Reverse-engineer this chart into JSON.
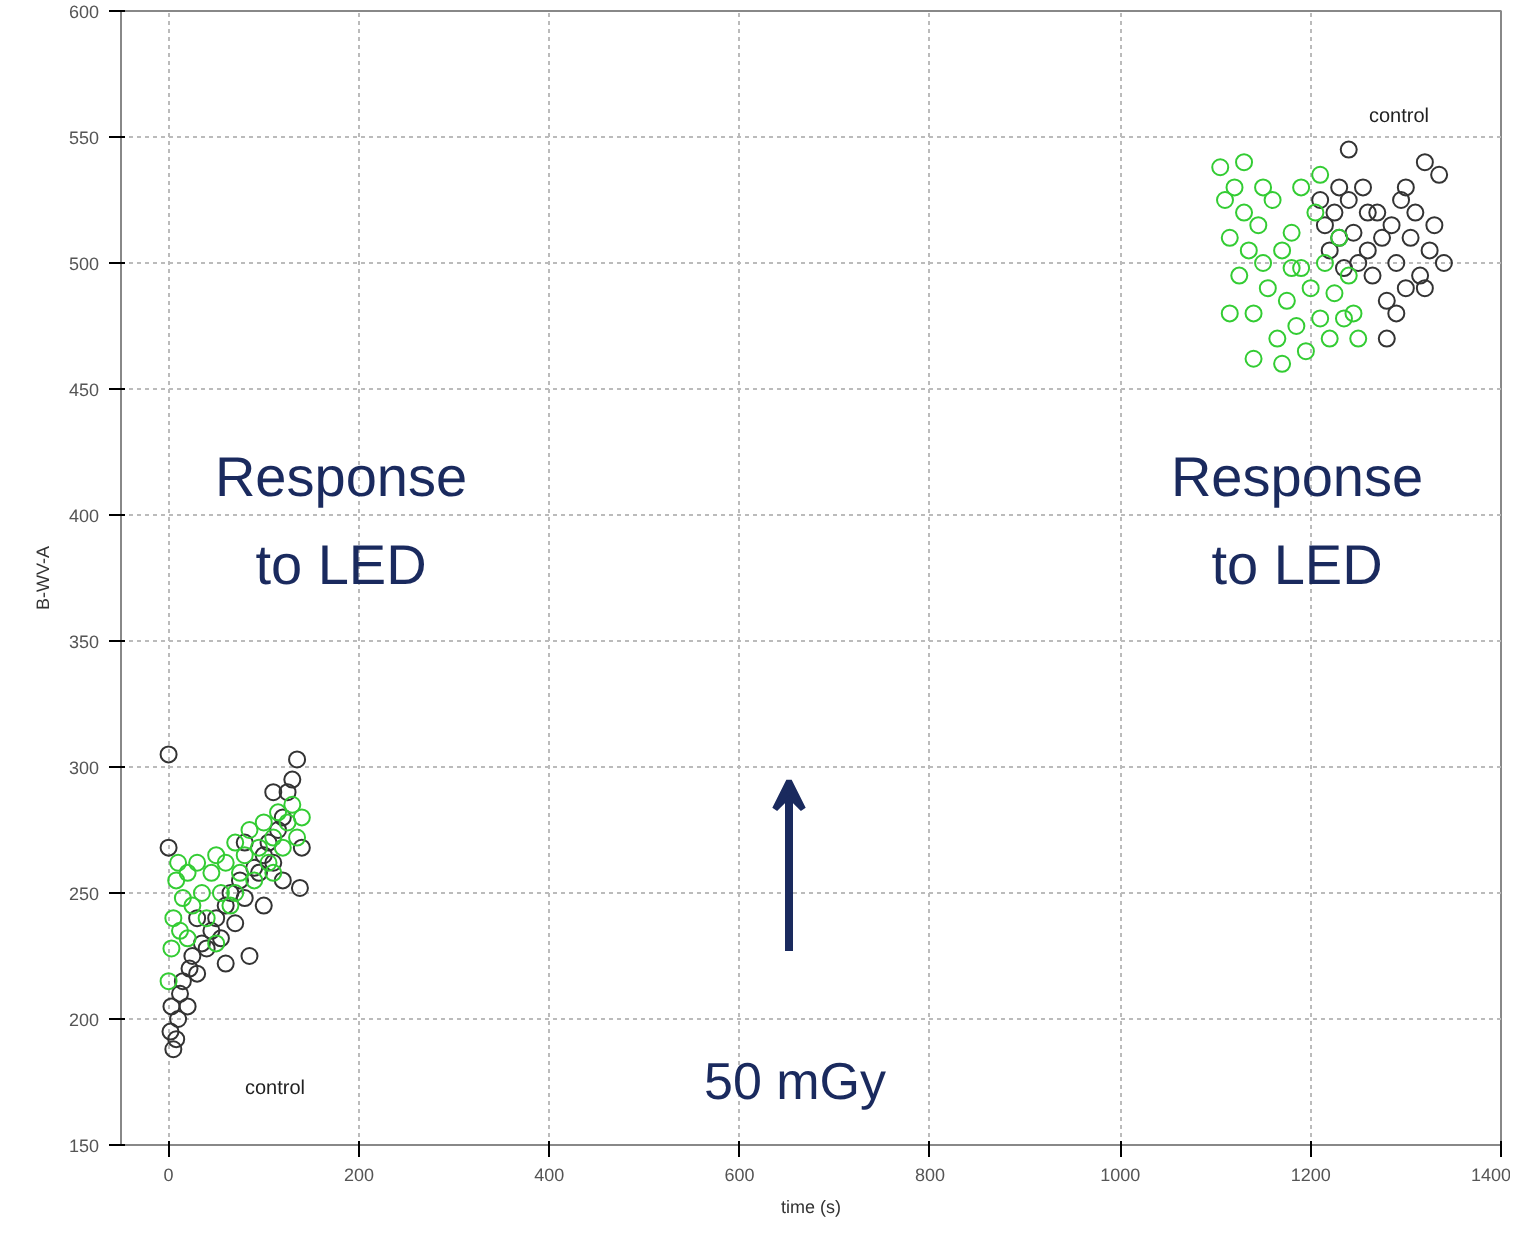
{
  "chart_data": {
    "type": "scatter",
    "xlabel": "time (s)",
    "ylabel": "B-WV-A",
    "xlim": [
      -50,
      1400
    ],
    "ylim": [
      150,
      600
    ],
    "xticks": [
      0,
      200,
      400,
      600,
      800,
      1000,
      1200,
      1400
    ],
    "yticks": [
      150,
      200,
      250,
      300,
      350,
      400,
      450,
      500,
      550,
      600
    ],
    "grid": true,
    "marker": "circle",
    "series": [
      {
        "color": "#333333",
        "x": [
          0,
          0,
          2,
          5,
          8,
          3,
          10,
          12,
          15,
          20,
          22,
          25,
          30,
          35,
          40,
          45,
          50,
          55,
          60,
          65,
          70,
          75,
          80,
          85,
          90,
          95,
          100,
          105,
          110,
          115,
          120,
          125,
          130,
          135,
          138,
          140,
          120,
          100,
          60,
          30,
          110,
          80,
          1210,
          1215,
          1220,
          1225,
          1230,
          1235,
          1240,
          1245,
          1250,
          1255,
          1260,
          1265,
          1270,
          1275,
          1280,
          1285,
          1290,
          1295,
          1300,
          1305,
          1310,
          1315,
          1320,
          1325,
          1330,
          1335,
          1340,
          1240,
          1280,
          1300,
          1260,
          1320,
          1230,
          1290
        ],
        "values": [
          305,
          268,
          195,
          188,
          192,
          205,
          200,
          210,
          215,
          205,
          220,
          225,
          218,
          230,
          228,
          235,
          240,
          232,
          245,
          250,
          238,
          255,
          248,
          225,
          260,
          258,
          265,
          270,
          262,
          275,
          280,
          290,
          295,
          303,
          252,
          268,
          255,
          245,
          222,
          240,
          290,
          270,
          525,
          515,
          505,
          520,
          510,
          498,
          525,
          512,
          500,
          530,
          505,
          495,
          520,
          510,
          485,
          515,
          500,
          525,
          490,
          510,
          520,
          495,
          540,
          505,
          515,
          535,
          500,
          545,
          470,
          530,
          520,
          490,
          530,
          480
        ]
      },
      {
        "color": "#33cc33",
        "x": [
          0,
          3,
          5,
          8,
          10,
          12,
          15,
          20,
          25,
          30,
          35,
          40,
          45,
          50,
          55,
          60,
          65,
          70,
          75,
          80,
          85,
          90,
          95,
          100,
          105,
          110,
          115,
          120,
          125,
          130,
          135,
          140,
          20,
          50,
          70,
          110,
          1105,
          1110,
          1115,
          1120,
          1125,
          1130,
          1135,
          1140,
          1145,
          1150,
          1155,
          1160,
          1165,
          1170,
          1175,
          1180,
          1185,
          1190,
          1195,
          1200,
          1205,
          1210,
          1215,
          1220,
          1225,
          1230,
          1235,
          1240,
          1245,
          1250,
          1115,
          1130,
          1150,
          1170,
          1190,
          1210,
          1140,
          1180
        ],
        "values": [
          215,
          228,
          240,
          255,
          262,
          235,
          248,
          258,
          245,
          262,
          250,
          240,
          258,
          265,
          250,
          262,
          245,
          270,
          258,
          265,
          275,
          255,
          268,
          278,
          262,
          272,
          282,
          268,
          278,
          285,
          272,
          280,
          232,
          230,
          250,
          258,
          538,
          525,
          510,
          530,
          495,
          520,
          505,
          480,
          515,
          500,
          490,
          525,
          470,
          505,
          485,
          512,
          475,
          498,
          465,
          490,
          520,
          478,
          500,
          470,
          488,
          510,
          478,
          495,
          480,
          470,
          480,
          540,
          530,
          460,
          530,
          535,
          462,
          498
        ]
      }
    ],
    "annotations": [
      "Response\nto LED",
      "Response\nto LED",
      "control",
      "control",
      "50 mGy"
    ]
  }
}
